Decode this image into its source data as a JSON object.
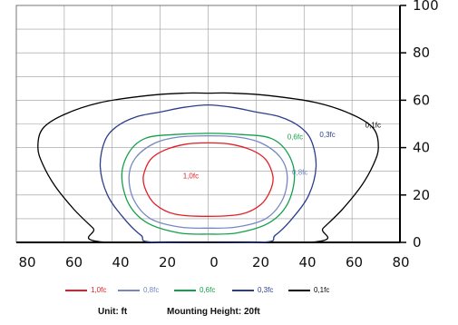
{
  "chart_data": {
    "type": "contour",
    "x_ticks": [
      "80",
      "60",
      "40",
      "20",
      "0",
      "20",
      "40",
      "60",
      "80"
    ],
    "y_ticks": [
      "0",
      "20",
      "40",
      "60",
      "80",
      "100"
    ],
    "xlim": [
      -80,
      80
    ],
    "ylim": [
      0,
      100
    ],
    "grid": true,
    "legend_position": "bottom",
    "unit_label": "Unit: ft",
    "mounting_label": "Mounting Height: 20ft",
    "series": [
      {
        "name": "1,0fc",
        "color": "#e21f26",
        "label_at": [
          -10.5,
          27
        ],
        "points": [
          [
            0,
            42
          ],
          [
            9,
            41.5
          ],
          [
            18,
            39
          ],
          [
            24,
            35
          ],
          [
            27,
            28
          ],
          [
            26,
            22
          ],
          [
            22,
            16
          ],
          [
            14,
            12
          ],
          [
            0,
            11
          ],
          [
            -14,
            12
          ],
          [
            -22,
            16
          ],
          [
            -26,
            22
          ],
          [
            -27,
            28
          ],
          [
            -24,
            35
          ],
          [
            -18,
            39
          ],
          [
            -9,
            41.5
          ]
        ]
      },
      {
        "name": "0,8fc",
        "color": "#7588c4",
        "label_at": [
          35,
          28.5
        ],
        "points": [
          [
            0,
            45
          ],
          [
            12,
            44.5
          ],
          [
            22,
            42
          ],
          [
            30,
            36
          ],
          [
            33,
            28
          ],
          [
            31,
            18
          ],
          [
            24,
            10
          ],
          [
            12,
            6.5
          ],
          [
            0,
            6
          ],
          [
            -12,
            6.5
          ],
          [
            -24,
            10
          ],
          [
            -31,
            18
          ],
          [
            -33,
            28
          ],
          [
            -30,
            36
          ],
          [
            -22,
            42
          ],
          [
            -12,
            44.5
          ]
        ]
      },
      {
        "name": "0,6fc",
        "color": "#13a04b",
        "label_at": [
          33,
          43.5
        ],
        "points": [
          [
            0,
            46
          ],
          [
            14,
            45.5
          ],
          [
            26,
            44
          ],
          [
            33,
            38
          ],
          [
            36,
            28
          ],
          [
            33,
            16
          ],
          [
            25,
            8
          ],
          [
            12,
            4
          ],
          [
            0,
            3.5
          ],
          [
            -12,
            4
          ],
          [
            -25,
            8
          ],
          [
            -33,
            16
          ],
          [
            -36,
            28
          ],
          [
            -33,
            38
          ],
          [
            -26,
            44
          ],
          [
            -14,
            45.5
          ]
        ]
      },
      {
        "name": "0,3fc",
        "color": "#2c3d8c",
        "label_at": [
          46.5,
          44.5
        ],
        "points": [
          [
            -20,
            55
          ],
          [
            -10,
            57
          ],
          [
            0,
            58
          ],
          [
            10,
            57
          ],
          [
            20,
            55
          ],
          [
            30,
            53
          ],
          [
            38,
            49
          ],
          [
            43,
            43
          ],
          [
            45,
            32
          ],
          [
            42,
            20
          ],
          [
            35,
            10
          ],
          [
            28,
            3
          ],
          [
            22,
            0
          ],
          [
            -22,
            0
          ],
          [
            -28,
            3
          ],
          [
            -35,
            10
          ],
          [
            -42,
            20
          ],
          [
            -45,
            32
          ],
          [
            -43,
            43
          ],
          [
            -38,
            49
          ],
          [
            -30,
            53
          ]
        ]
      },
      {
        "name": "0,1fc",
        "color": "#000000",
        "label_at": [
          65.5,
          48.5
        ],
        "points": [
          [
            0,
            63
          ],
          [
            -10,
            63
          ],
          [
            -25,
            62
          ],
          [
            -45,
            59
          ],
          [
            -60,
            54
          ],
          [
            -69,
            48
          ],
          [
            -71,
            40
          ],
          [
            -69,
            33
          ],
          [
            -64,
            24
          ],
          [
            -56,
            14
          ],
          [
            -48,
            6
          ],
          [
            -42,
            0
          ],
          [
            42,
            0
          ],
          [
            48,
            6
          ],
          [
            56,
            14
          ],
          [
            64,
            24
          ],
          [
            69,
            33
          ],
          [
            71,
            40
          ],
          [
            69,
            48
          ],
          [
            60,
            54
          ],
          [
            45,
            59
          ],
          [
            25,
            62
          ],
          [
            10,
            63
          ]
        ]
      }
    ]
  }
}
